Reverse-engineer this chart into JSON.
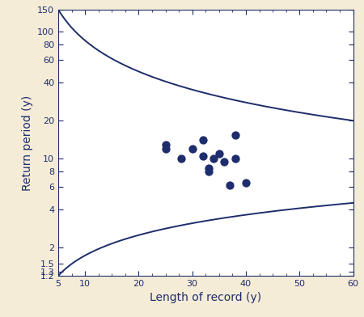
{
  "xlabel": "Length of record (y)",
  "ylabel": "Return period (y)",
  "xlim": [
    5,
    60
  ],
  "ylim": [
    1.2,
    150
  ],
  "ytick_values": [
    1.2,
    1.3,
    1.5,
    2,
    4,
    6,
    8,
    10,
    20,
    40,
    60,
    80,
    100,
    150
  ],
  "ytick_labels": [
    "1.2",
    "1.3",
    "1.5",
    "2",
    "4",
    "6",
    "8",
    "10",
    "20",
    "40",
    "60",
    "80",
    "100",
    "150"
  ],
  "xticks": [
    5,
    10,
    20,
    30,
    40,
    50,
    60
  ],
  "background_color": "#f5ecd7",
  "plot_bg_color": "#ffffff",
  "curve_color": "#1e2d6b",
  "dot_color": "#1e2d6b",
  "dot_size": 55,
  "upper_asymptote": 20.0,
  "upper_scale": 130.0,
  "upper_power": 1.3,
  "lower_asymptote": 4.55,
  "lower_scale": 3.35,
  "lower_power": 1.0,
  "scatter_x": [
    25,
    25,
    28,
    30,
    32,
    32,
    33,
    33,
    34,
    35,
    36,
    37,
    38,
    38,
    40
  ],
  "scatter_y": [
    13,
    12,
    10,
    12,
    10.5,
    14,
    8,
    8.5,
    10,
    11,
    9.5,
    6.2,
    10,
    15.5,
    6.5
  ]
}
